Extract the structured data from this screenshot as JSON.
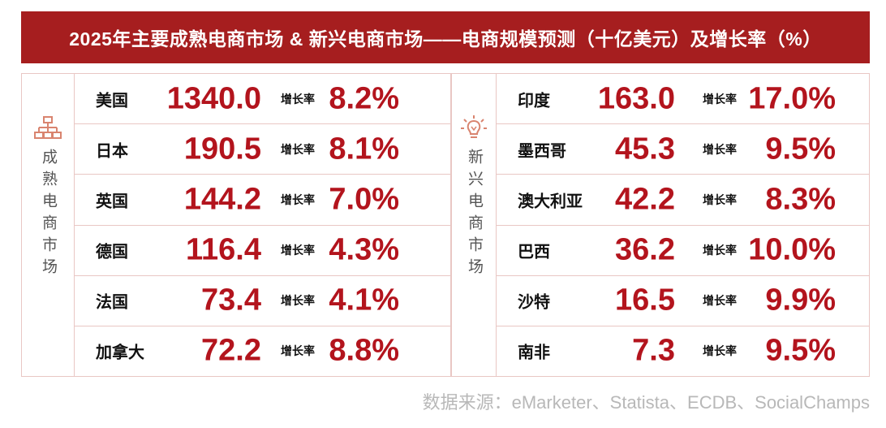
{
  "title": "2025年主要成熟电商市场 & 新兴电商市场——电商规模预测（十亿美元）及增长率（%）",
  "source": "数据来源：eMarketer、Statista、ECDB、SocialChamps",
  "growth_label": "增长率",
  "colors": {
    "accent": "#a61e1f",
    "value": "#b3141d",
    "border": "#e9c7c4",
    "icon": "#d9846f"
  },
  "mature": {
    "label": "成熟电商市场",
    "icon": "hierarchy-icon"
  },
  "emerging": {
    "label": "新兴电商市场",
    "icon": "lightbulb-icon"
  },
  "chart_data": {
    "type": "table",
    "title": "2025年主要成熟电商市场 & 新兴电商市场——电商规模预测（十亿美元）及增长率（%）",
    "groups": [
      {
        "name": "成熟电商市场",
        "rows": [
          {
            "country": "美国",
            "value": "1340.0",
            "growth": "8.2%"
          },
          {
            "country": "日本",
            "value": "190.5",
            "growth": "8.1%"
          },
          {
            "country": "英国",
            "value": "144.2",
            "growth": "7.0%"
          },
          {
            "country": "德国",
            "value": "116.4",
            "growth": "4.3%"
          },
          {
            "country": "法国",
            "value": "73.4",
            "growth": "4.1%"
          },
          {
            "country": "加拿大",
            "value": "72.2",
            "growth": "8.8%"
          }
        ]
      },
      {
        "name": "新兴电商市场",
        "rows": [
          {
            "country": "印度",
            "value": "163.0",
            "growth": "17.0%"
          },
          {
            "country": "墨西哥",
            "value": "45.3",
            "growth": "9.5%"
          },
          {
            "country": "澳大利亚",
            "value": "42.2",
            "growth": "8.3%"
          },
          {
            "country": "巴西",
            "value": "36.2",
            "growth": "10.0%"
          },
          {
            "country": "沙特",
            "value": "16.5",
            "growth": "9.9%"
          },
          {
            "country": "南非",
            "value": "7.3",
            "growth": "9.5%"
          }
        ]
      }
    ]
  }
}
